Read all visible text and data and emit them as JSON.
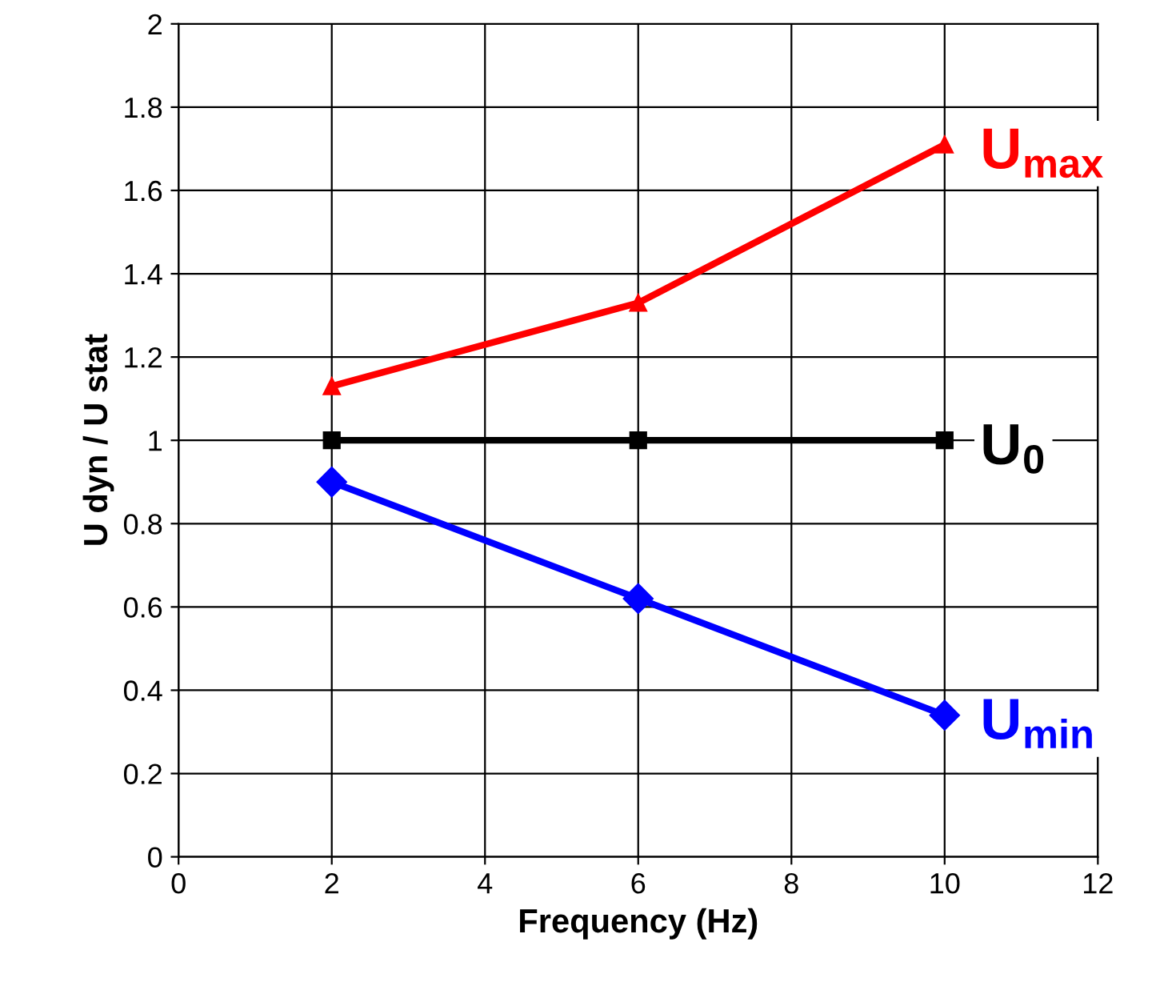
{
  "chart_data": {
    "type": "line",
    "xlabel": "Frequency (Hz)",
    "ylabel": "U dyn / U stat",
    "x": [
      2,
      6,
      10
    ],
    "series": [
      {
        "name": "U$_{max}$",
        "color": "#ff0000",
        "marker": "triangle",
        "values": [
          1.13,
          1.33,
          1.71
        ]
      },
      {
        "name": "U$_{0}$",
        "color": "#000000",
        "marker": "square",
        "values": [
          1.0,
          1.0,
          1.0
        ]
      },
      {
        "name": "U$_{min}$",
        "color": "#0000ff",
        "marker": "diamond",
        "values": [
          0.9,
          0.62,
          0.34
        ]
      }
    ],
    "xlim": [
      0,
      12
    ],
    "xticks": [
      0,
      2,
      4,
      6,
      8,
      10,
      12
    ],
    "ylim": [
      0,
      2
    ],
    "yticks": [
      0,
      0.2,
      0.4,
      0.6,
      0.8,
      1,
      1.2,
      1.4,
      1.6,
      1.8,
      2
    ],
    "grid": true,
    "line_style": "solid"
  }
}
